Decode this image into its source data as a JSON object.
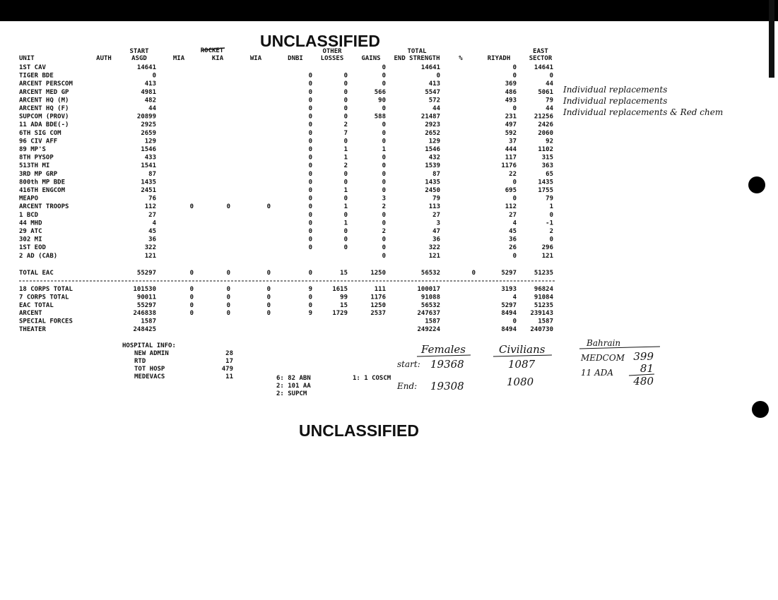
{
  "header": {
    "title": "UNCLASSIFIED"
  },
  "table": {
    "columns": [
      [
        "UNIT"
      ],
      [
        "AUTH"
      ],
      [
        "START",
        "ASGD"
      ],
      [
        "MIA"
      ],
      [
        "KIA"
      ],
      [
        "WIA"
      ],
      [
        "DNBI"
      ],
      [
        "OTHER",
        "LOSSES"
      ],
      [
        "GAINS"
      ],
      [
        "TOTAL",
        "END STRENGTH"
      ],
      [
        "%"
      ],
      [
        "RIYADH"
      ],
      [
        "EAST",
        "SECTOR"
      ]
    ],
    "struck_header": "ROCKET",
    "rows": [
      [
        "1ST CAV",
        null,
        14641,
        null,
        null,
        null,
        null,
        null,
        0,
        14641,
        null,
        0,
        14641
      ],
      [
        "TIGER BDE",
        null,
        0,
        null,
        null,
        null,
        0,
        0,
        0,
        0,
        null,
        0,
        0
      ],
      [
        "ARCENT PERSCOM",
        null,
        413,
        null,
        null,
        null,
        0,
        0,
        0,
        413,
        null,
        369,
        44
      ],
      [
        "ARCENT MED GP",
        null,
        4981,
        null,
        null,
        null,
        0,
        0,
        566,
        5547,
        null,
        486,
        5061
      ],
      [
        "ARCENT HQ (M)",
        null,
        482,
        null,
        null,
        null,
        0,
        0,
        90,
        572,
        null,
        493,
        79
      ],
      [
        "ARCENT HQ (F)",
        null,
        44,
        null,
        null,
        null,
        0,
        0,
        0,
        44,
        null,
        0,
        44
      ],
      [
        "SUPCOM (PROV)",
        null,
        20899,
        null,
        null,
        null,
        0,
        0,
        588,
        21487,
        null,
        231,
        21256
      ],
      [
        "11 ADA BDE(-)",
        null,
        2925,
        null,
        null,
        null,
        0,
        2,
        0,
        2923,
        null,
        497,
        2426
      ],
      [
        "6TH SIG COM",
        null,
        2659,
        null,
        null,
        null,
        0,
        7,
        0,
        2652,
        null,
        592,
        2060
      ],
      [
        "96 CIV AFF",
        null,
        129,
        null,
        null,
        null,
        0,
        0,
        0,
        129,
        null,
        37,
        92
      ],
      [
        "89 MP'S",
        null,
        1546,
        null,
        null,
        null,
        0,
        1,
        1,
        1546,
        null,
        444,
        1102
      ],
      [
        "8TH PYSOP",
        null,
        433,
        null,
        null,
        null,
        0,
        1,
        0,
        432,
        null,
        117,
        315
      ],
      [
        "513TH MI",
        null,
        1541,
        null,
        null,
        null,
        0,
        2,
        0,
        1539,
        null,
        1176,
        363
      ],
      [
        "3RD MP GRP",
        null,
        87,
        null,
        null,
        null,
        0,
        0,
        0,
        87,
        null,
        22,
        65
      ],
      [
        "800th MP BDE",
        null,
        1435,
        null,
        null,
        null,
        0,
        0,
        0,
        1435,
        null,
        0,
        1435
      ],
      [
        "416TH ENGCOM",
        null,
        2451,
        null,
        null,
        null,
        0,
        1,
        0,
        2450,
        null,
        695,
        1755
      ],
      [
        "MEAPO",
        null,
        76,
        null,
        null,
        null,
        0,
        0,
        3,
        79,
        null,
        0,
        79
      ],
      [
        "ARCENT TROOPS",
        null,
        112,
        0,
        0,
        0,
        0,
        1,
        2,
        113,
        null,
        112,
        1
      ],
      [
        " 1 BCD",
        null,
        27,
        null,
        null,
        null,
        0,
        0,
        0,
        27,
        null,
        27,
        0
      ],
      [
        " 44 MHD",
        null,
        4,
        null,
        null,
        null,
        0,
        1,
        0,
        3,
        null,
        4,
        -1
      ],
      [
        " 29 ATC",
        null,
        45,
        null,
        null,
        null,
        0,
        0,
        2,
        47,
        null,
        45,
        2
      ],
      [
        " 302 MI",
        null,
        36,
        null,
        null,
        null,
        0,
        0,
        0,
        36,
        null,
        36,
        0
      ],
      [
        "1ST EOD",
        null,
        322,
        null,
        null,
        null,
        0,
        0,
        0,
        322,
        null,
        26,
        296
      ],
      [
        "2 AD (CAB)",
        null,
        121,
        null,
        null,
        null,
        null,
        null,
        0,
        121,
        null,
        0,
        121
      ]
    ],
    "total_row": [
      "TOTAL EAC",
      null,
      55297,
      0,
      0,
      0,
      0,
      15,
      1250,
      56532,
      0,
      5297,
      51235
    ],
    "summary_rows": [
      [
        "18 CORPS TOTAL",
        null,
        101530,
        0,
        0,
        0,
        9,
        1615,
        111,
        100017,
        null,
        3193,
        96824
      ],
      [
        "7 CORPS TOTAL",
        null,
        90011,
        0,
        0,
        0,
        0,
        99,
        1176,
        91088,
        null,
        4,
        91084
      ],
      [
        "EAC TOTAL",
        null,
        55297,
        0,
        0,
        0,
        0,
        15,
        1250,
        56532,
        null,
        5297,
        51235
      ],
      [
        "ARCENT",
        null,
        246838,
        0,
        0,
        0,
        9,
        1729,
        2537,
        247637,
        null,
        8494,
        239143
      ],
      [
        "SPECIAL FORCES",
        null,
        1587,
        null,
        null,
        null,
        null,
        null,
        null,
        1587,
        null,
        0,
        1587
      ],
      [
        "THEATER",
        null,
        248425,
        null,
        null,
        null,
        null,
        null,
        null,
        249224,
        null,
        8494,
        240730
      ]
    ]
  },
  "hospital": {
    "title": "HOSPITAL INFO:",
    "items": [
      [
        "NEW ADMIN",
        28
      ],
      [
        "RTD",
        17
      ],
      [
        "TOT HOSP",
        479
      ],
      [
        "MEDEVACS",
        11
      ]
    ]
  },
  "medevac_units": [
    "6: 82 ABN",
    "2: 101 AA",
    "2: SUPCM"
  ],
  "medevac_units_2": [
    "1: 1 COSCM"
  ],
  "handwritten": {
    "notes": [
      "Individual replacements",
      "Individual replacements",
      "Individual replacements & Red chem"
    ],
    "females": {
      "title": "Females",
      "start_label": "start:",
      "start": 19368,
      "end_label": "End:",
      "end": 19308
    },
    "civilians": {
      "title": "Civilians",
      "start": 1087,
      "end": 1080
    },
    "bahrain": {
      "title": "Bahrain",
      "rows": [
        [
          "MEDCOM",
          399
        ],
        [
          "11 ADA",
          81
        ]
      ],
      "total": 480
    }
  },
  "footer": {
    "title": "UNCLASSIFIED"
  }
}
